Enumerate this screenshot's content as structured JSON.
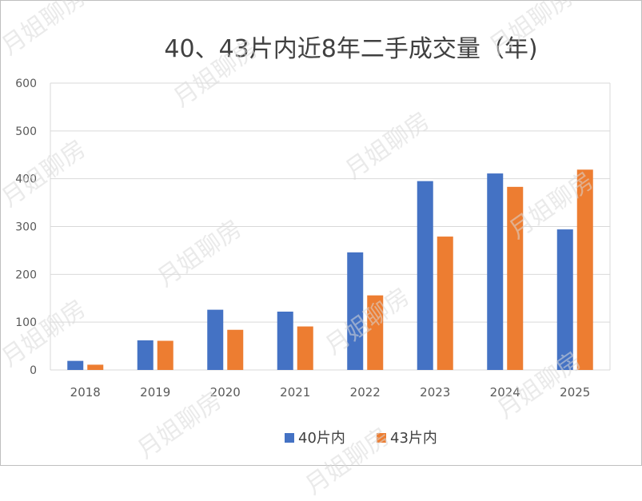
{
  "chart_data": {
    "type": "bar",
    "title": "40、43片内近8年二手成交量（年)",
    "categories": [
      "2018",
      "2019",
      "2020",
      "2021",
      "2022",
      "2023",
      "2024",
      "2025"
    ],
    "series": [
      {
        "name": "40片内",
        "color": "#4472c4",
        "values": [
          19,
          62,
          126,
          122,
          246,
          395,
          411,
          294
        ]
      },
      {
        "name": "43片内",
        "color": "#ed7d31",
        "values": [
          11,
          61,
          84,
          91,
          156,
          279,
          383,
          419
        ]
      }
    ],
    "ylim": [
      0,
      600
    ],
    "yticks": [
      0,
      100,
      200,
      300,
      400,
      500,
      600
    ],
    "grid": true,
    "legend_position": "bottom"
  },
  "watermark": "月姐聊房"
}
